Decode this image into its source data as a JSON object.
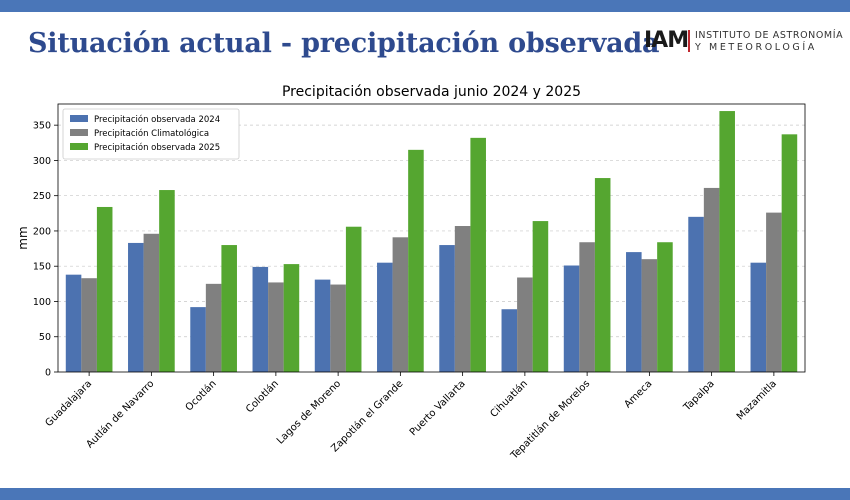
{
  "slide": {
    "title": "Situación actual - precipitación observada",
    "logo_mark": "IAM",
    "logo_line1": "INSTITUTO DE ASTRONOMÍA",
    "logo_line2": "Y METEOROLOGÍA"
  },
  "colors": {
    "band": "#4a76b8",
    "title": "#2e4a8e",
    "logo_accent": "#c0282f",
    "series_2024": "#4c72b0",
    "series_clim": "#808080",
    "series_2025": "#55a630"
  },
  "chart_data": {
    "type": "bar",
    "title": "Precipitación observada junio 2024 y 2025",
    "xlabel": "",
    "ylabel": "mm",
    "ylim": [
      0,
      380
    ],
    "yticks": [
      0,
      50,
      100,
      150,
      200,
      250,
      300,
      350
    ],
    "grid": true,
    "legend_position": "top-left",
    "categories": [
      "Guadalajara",
      "Autlán de Navarro",
      "Ocotlán",
      "Colotlán",
      "Lagos de Moreno",
      "Zapotlán el Grande",
      "Puerto Vallarta",
      "Cihuatlán",
      "Tepatitlán de Morelos",
      "Ameca",
      "Tapalpa",
      "Mazamitla"
    ],
    "series": [
      {
        "name": "Precipitación observada 2024",
        "color": "#4c72b0",
        "values": [
          138,
          183,
          92,
          149,
          131,
          155,
          180,
          89,
          151,
          170,
          220,
          155
        ]
      },
      {
        "name": "Precipitación Climatológica",
        "color": "#808080",
        "values": [
          133,
          196,
          125,
          127,
          124,
          191,
          207,
          134,
          184,
          160,
          261,
          226
        ]
      },
      {
        "name": "Precipitación observada 2025",
        "color": "#55a630",
        "values": [
          234,
          258,
          180,
          153,
          206,
          315,
          332,
          214,
          275,
          184,
          370,
          337
        ]
      }
    ]
  }
}
